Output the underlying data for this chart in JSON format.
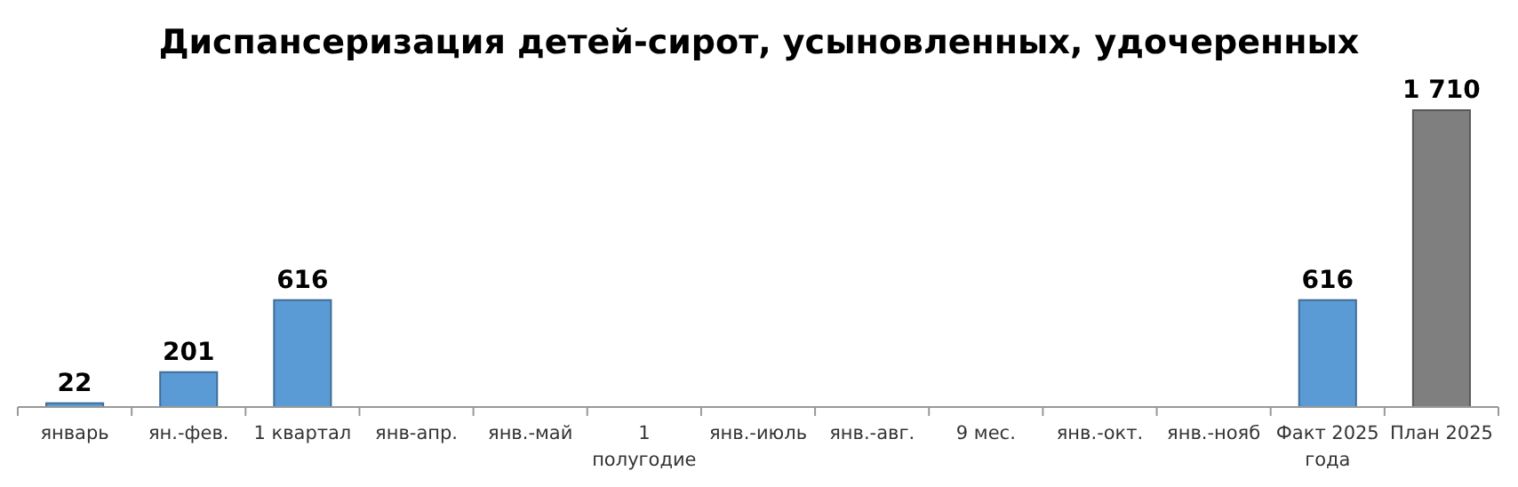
{
  "chart_data": {
    "type": "bar",
    "title": "Диспансеризация детей-сирот, усыновленных, удочеренных",
    "categories": [
      "январь",
      "ян.-фев.",
      "1 квартал",
      "янв-апр.",
      "янв.-май",
      "1 полугодие",
      "янв.-июль",
      "янв.-авг.",
      "9 мес.",
      "янв.-окт.",
      "янв.-нояб",
      "Факт 2025 года",
      "План 2025"
    ],
    "values": [
      22,
      201,
      616,
      null,
      null,
      null,
      null,
      null,
      null,
      null,
      null,
      616,
      1710
    ],
    "colors": [
      "#5b9bd5",
      "#5b9bd5",
      "#5b9bd5",
      null,
      null,
      null,
      null,
      null,
      null,
      null,
      null,
      "#5b9bd5",
      "#7f7f7f"
    ],
    "value_labels": [
      "22",
      "201",
      "616",
      null,
      null,
      null,
      null,
      null,
      null,
      null,
      null,
      "616",
      "1 710"
    ],
    "ylim": [
      0,
      1710
    ]
  }
}
